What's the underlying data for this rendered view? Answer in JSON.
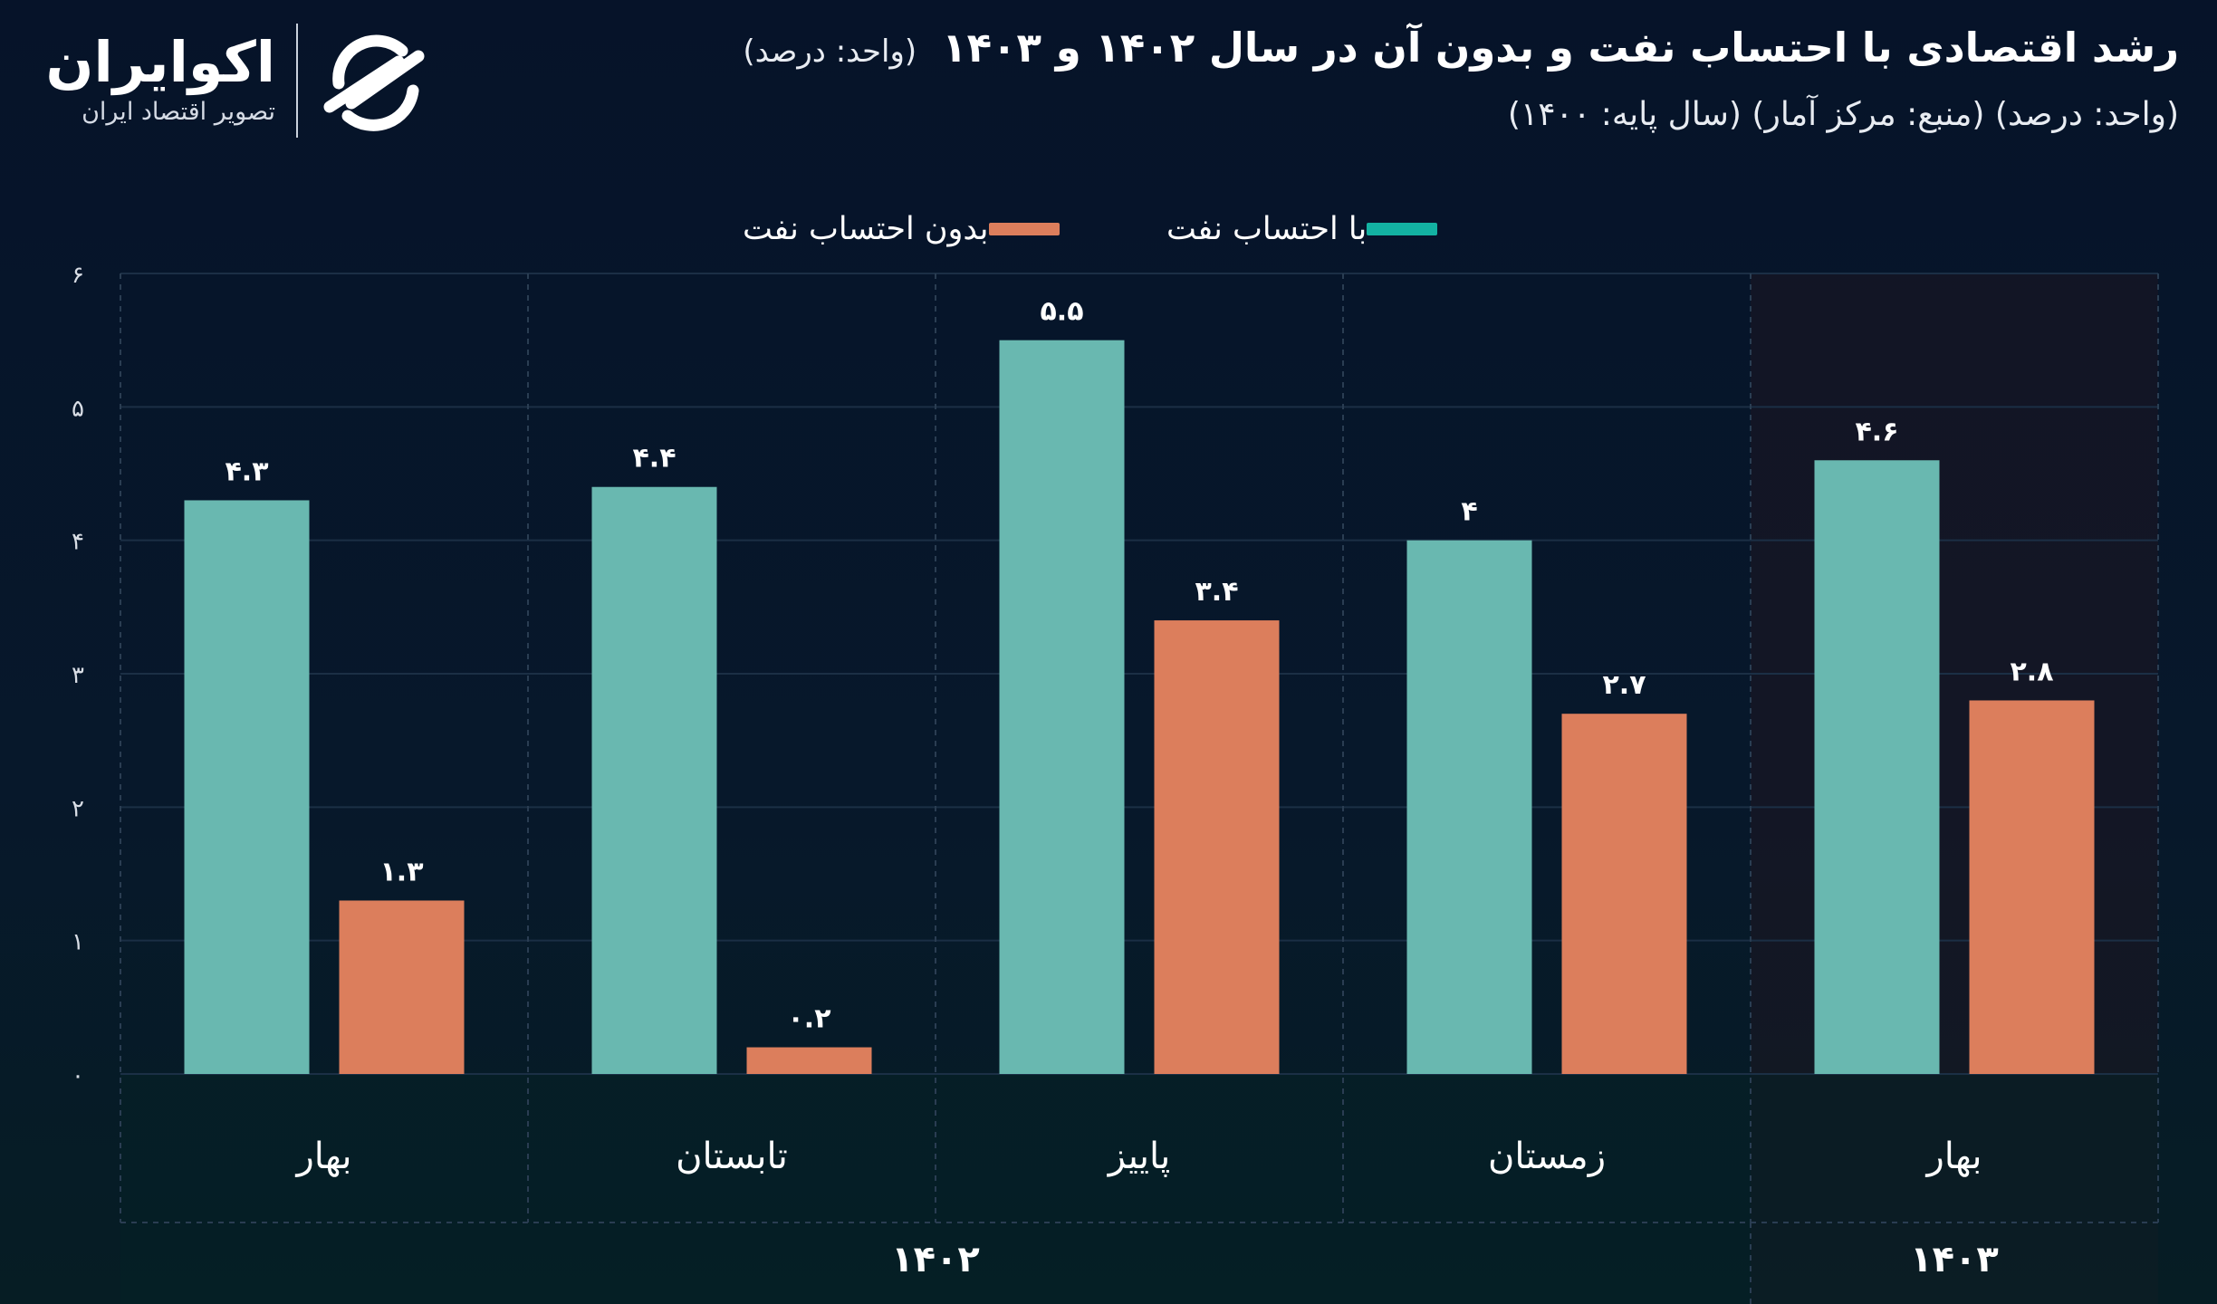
{
  "header": {
    "title": "رشد اقتصادی با احتساب نفت و بدون آن در سال ۱۴۰۲ و ۱۴۰۳",
    "title_unit": "(واحد: درصد)",
    "subtitle": "(واحد: درصد) (منبع: مرکز آمار) (سال پایه: ۱۴۰۰)"
  },
  "logo": {
    "name": "اکوایران",
    "tagline": "تصویر اقتصاد ایران"
  },
  "colors": {
    "with_oil": "#69b8b0",
    "without_oil": "#dc7e5c",
    "legend_with_oil": "#13b2a2",
    "background": "#07142a",
    "highlight_1403": "#1e1620"
  },
  "chart_data": {
    "type": "bar",
    "title": "رشد اقتصادی با احتساب نفت و بدون آن در سال ۱۴۰۲ و ۱۴۰۳",
    "xlabel": "",
    "ylabel": "",
    "ylim": [
      0,
      6
    ],
    "yticks": [
      0,
      1,
      2,
      3,
      4,
      5,
      6
    ],
    "ytick_labels": [
      "۰",
      "۱",
      "۲",
      "۳",
      "۴",
      "۵",
      "۶"
    ],
    "grid": true,
    "legend_position": "top-center",
    "categories": [
      "بهار",
      "تابستان",
      "پاییز",
      "زمستان",
      "بهار"
    ],
    "groups": [
      {
        "label": "۱۴۰۲",
        "categories_count": 4
      },
      {
        "label": "۱۴۰۳",
        "categories_count": 1
      }
    ],
    "series": [
      {
        "name": "با احتساب نفت",
        "values": [
          4.3,
          4.4,
          5.5,
          4.0,
          4.6
        ],
        "labels": [
          "۴.۳",
          "۴.۴",
          "۵.۵",
          "۴",
          "۴.۶"
        ]
      },
      {
        "name": "بدون احتساب نفت",
        "values": [
          1.3,
          0.2,
          3.4,
          2.7,
          2.8
        ],
        "labels": [
          "۱.۳",
          "۰.۲",
          "۳.۴",
          "۲.۷",
          "۲.۸"
        ]
      }
    ]
  }
}
